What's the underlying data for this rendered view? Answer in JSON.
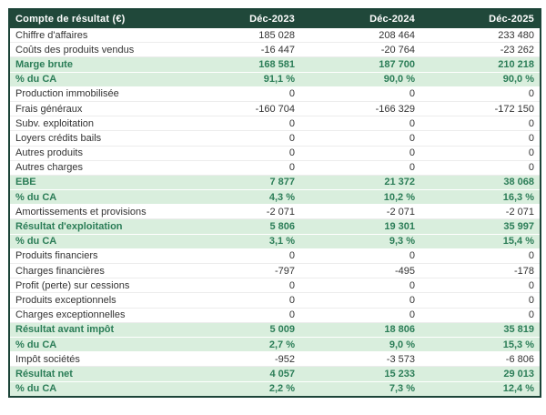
{
  "table": {
    "title": "Compte de résultat (€)",
    "columns": [
      "Déc-2023",
      "Déc-2024",
      "Déc-2025"
    ],
    "rows": [
      {
        "label": "Chiffre d'affaires",
        "values": [
          "185 028",
          "208 464",
          "233 480"
        ],
        "highlight": false
      },
      {
        "label": "Coûts des produits vendus",
        "values": [
          "-16 447",
          "-20 764",
          "-23 262"
        ],
        "highlight": false
      },
      {
        "label": "Marge brute",
        "values": [
          "168 581",
          "187 700",
          "210 218"
        ],
        "highlight": true
      },
      {
        "label": "% du CA",
        "values": [
          "91,1 %",
          "90,0 %",
          "90,0 %"
        ],
        "highlight": true
      },
      {
        "label": "Production immobilisée",
        "values": [
          "0",
          "0",
          "0"
        ],
        "highlight": false
      },
      {
        "label": "Frais généraux",
        "values": [
          "-160 704",
          "-166 329",
          "-172 150"
        ],
        "highlight": false
      },
      {
        "label": "Subv. exploitation",
        "values": [
          "0",
          "0",
          "0"
        ],
        "highlight": false
      },
      {
        "label": "Loyers crédits bails",
        "values": [
          "0",
          "0",
          "0"
        ],
        "highlight": false
      },
      {
        "label": "Autres produits",
        "values": [
          "0",
          "0",
          "0"
        ],
        "highlight": false
      },
      {
        "label": "Autres charges",
        "values": [
          "0",
          "0",
          "0"
        ],
        "highlight": false
      },
      {
        "label": "EBE",
        "values": [
          "7 877",
          "21 372",
          "38 068"
        ],
        "highlight": true
      },
      {
        "label": "% du CA",
        "values": [
          "4,3 %",
          "10,2 %",
          "16,3 %"
        ],
        "highlight": true
      },
      {
        "label": "Amortissements et provisions",
        "values": [
          "-2 071",
          "-2 071",
          "-2 071"
        ],
        "highlight": false
      },
      {
        "label": "Résultat d'exploitation",
        "values": [
          "5 806",
          "19 301",
          "35 997"
        ],
        "highlight": true
      },
      {
        "label": "% du CA",
        "values": [
          "3,1 %",
          "9,3 %",
          "15,4 %"
        ],
        "highlight": true
      },
      {
        "label": "Produits financiers",
        "values": [
          "0",
          "0",
          "0"
        ],
        "highlight": false
      },
      {
        "label": "Charges financières",
        "values": [
          "-797",
          "-495",
          "-178"
        ],
        "highlight": false
      },
      {
        "label": "Profit (perte) sur cessions",
        "values": [
          "0",
          "0",
          "0"
        ],
        "highlight": false
      },
      {
        "label": "Produits exceptionnels",
        "values": [
          "0",
          "0",
          "0"
        ],
        "highlight": false
      },
      {
        "label": "Charges exceptionnelles",
        "values": [
          "0",
          "0",
          "0"
        ],
        "highlight": false
      },
      {
        "label": "Résultat avant impôt",
        "values": [
          "5 009",
          "18 806",
          "35 819"
        ],
        "highlight": true
      },
      {
        "label": "% du CA",
        "values": [
          "2,7 %",
          "9,0 %",
          "15,3 %"
        ],
        "highlight": true
      },
      {
        "label": "Impôt sociétés",
        "values": [
          "-952",
          "-3 573",
          "-6 806"
        ],
        "highlight": false
      },
      {
        "label": "Résultat net",
        "values": [
          "4 057",
          "15 233",
          "29 013"
        ],
        "highlight": true
      },
      {
        "label": "% du CA",
        "values": [
          "2,2 %",
          "7,3 %",
          "12,4 %"
        ],
        "highlight": true
      }
    ]
  },
  "colors": {
    "header_bg": "#20483a",
    "header_text": "#ffffff",
    "highlight_bg": "#d9eedd",
    "highlight_text": "#2b7d57",
    "border": "#1c4438",
    "row_text": "#333333",
    "row_separator": "#ececec"
  },
  "chart_data": {
    "type": "table",
    "title": "Compte de résultat (€)",
    "columns": [
      "Déc-2023",
      "Déc-2024",
      "Déc-2025"
    ],
    "rows": [
      {
        "label": "Chiffre d'affaires",
        "values": [
          185028,
          208464,
          233480
        ]
      },
      {
        "label": "Coûts des produits vendus",
        "values": [
          -16447,
          -20764,
          -23262
        ]
      },
      {
        "label": "Marge brute",
        "values": [
          168581,
          187700,
          210218
        ]
      },
      {
        "label": "Marge brute % du CA",
        "values": [
          91.1,
          90.0,
          90.0
        ],
        "unit": "%"
      },
      {
        "label": "Production immobilisée",
        "values": [
          0,
          0,
          0
        ]
      },
      {
        "label": "Frais généraux",
        "values": [
          -160704,
          -166329,
          -172150
        ]
      },
      {
        "label": "Subv. exploitation",
        "values": [
          0,
          0,
          0
        ]
      },
      {
        "label": "Loyers crédits bails",
        "values": [
          0,
          0,
          0
        ]
      },
      {
        "label": "Autres produits",
        "values": [
          0,
          0,
          0
        ]
      },
      {
        "label": "Autres charges",
        "values": [
          0,
          0,
          0
        ]
      },
      {
        "label": "EBE",
        "values": [
          7877,
          21372,
          38068
        ]
      },
      {
        "label": "EBE % du CA",
        "values": [
          4.3,
          10.2,
          16.3
        ],
        "unit": "%"
      },
      {
        "label": "Amortissements et provisions",
        "values": [
          -2071,
          -2071,
          -2071
        ]
      },
      {
        "label": "Résultat d'exploitation",
        "values": [
          5806,
          19301,
          35997
        ]
      },
      {
        "label": "Résultat d'exploitation % du CA",
        "values": [
          3.1,
          9.3,
          15.4
        ],
        "unit": "%"
      },
      {
        "label": "Produits financiers",
        "values": [
          0,
          0,
          0
        ]
      },
      {
        "label": "Charges financières",
        "values": [
          -797,
          -495,
          -178
        ]
      },
      {
        "label": "Profit (perte) sur cessions",
        "values": [
          0,
          0,
          0
        ]
      },
      {
        "label": "Produits exceptionnels",
        "values": [
          0,
          0,
          0
        ]
      },
      {
        "label": "Charges exceptionnelles",
        "values": [
          0,
          0,
          0
        ]
      },
      {
        "label": "Résultat avant impôt",
        "values": [
          5009,
          18806,
          35819
        ]
      },
      {
        "label": "Résultat avant impôt % du CA",
        "values": [
          2.7,
          9.0,
          15.3
        ],
        "unit": "%"
      },
      {
        "label": "Impôt sociétés",
        "values": [
          -952,
          -3573,
          -6806
        ]
      },
      {
        "label": "Résultat net",
        "values": [
          4057,
          15233,
          29013
        ]
      },
      {
        "label": "Résultat net % du CA",
        "values": [
          2.2,
          7.3,
          12.4
        ],
        "unit": "%"
      }
    ]
  }
}
